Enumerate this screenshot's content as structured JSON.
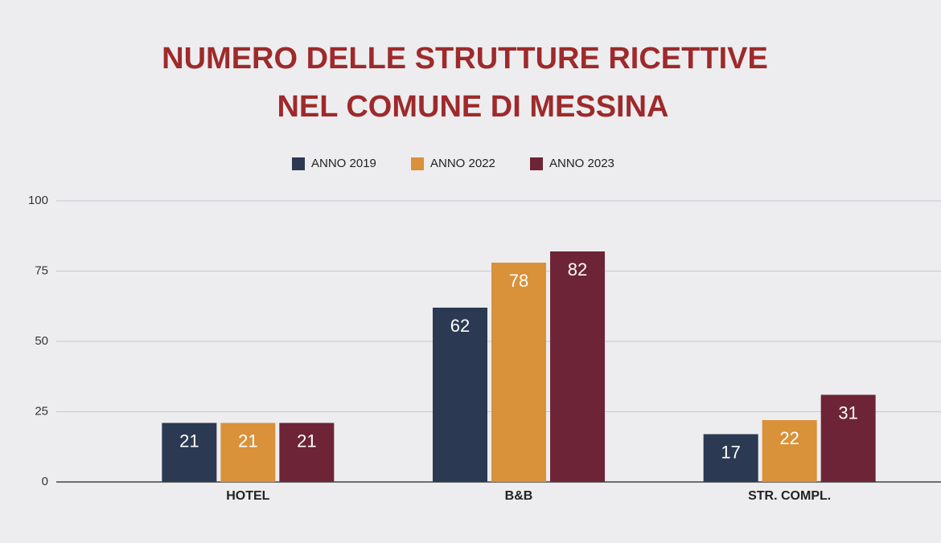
{
  "chart_data": {
    "type": "bar",
    "title": [
      "NUMERO DELLE STRUTTURE RICETTIVE",
      "NEL COMUNE DI MESSINA"
    ],
    "categories": [
      "HOTEL",
      "B&B",
      "STR. COMPL."
    ],
    "series": [
      {
        "name": "ANNO 2019",
        "color": "#2b3a52",
        "values": [
          21,
          62,
          17
        ]
      },
      {
        "name": "ANNO 2022",
        "color": "#d9913a",
        "values": [
          21,
          78,
          22
        ]
      },
      {
        "name": "ANNO 2023",
        "color": "#6e2437",
        "values": [
          21,
          82,
          31
        ]
      }
    ],
    "ylim": [
      0,
      100
    ],
    "yticks": [
      0,
      25,
      50,
      75,
      100
    ],
    "grid": true,
    "legend": "top"
  }
}
